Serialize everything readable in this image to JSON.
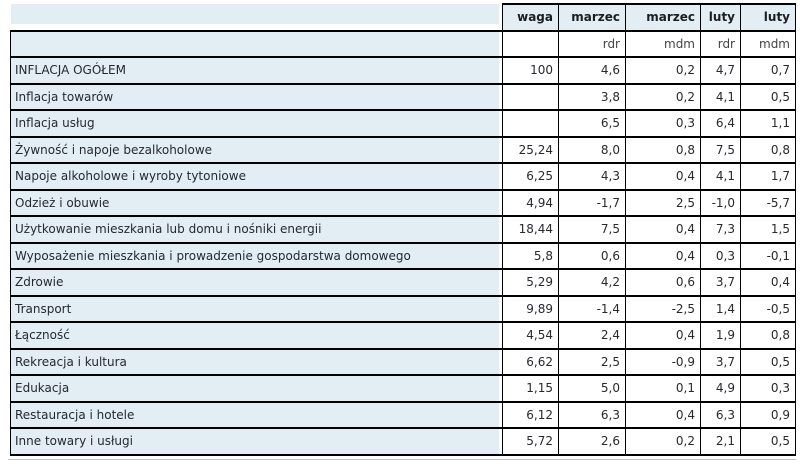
{
  "table": {
    "header_row_1": [
      "",
      "waga",
      "marzec",
      "marzec",
      "luty",
      "luty"
    ],
    "header_row_2": [
      "",
      "",
      "rdr",
      "mdm",
      "rdr",
      "mdm"
    ],
    "rows": [
      {
        "label": "INFLACJA OGÓŁEM",
        "values": [
          "100",
          "4,6",
          "0,2",
          "4,7",
          "0,7"
        ]
      },
      {
        "label": "Inflacja towarów",
        "values": [
          "",
          "3,8",
          "0,2",
          "4,1",
          "0,5"
        ]
      },
      {
        "label": "Inflacja usług",
        "values": [
          "",
          "6,5",
          "0,3",
          "6,4",
          "1,1"
        ]
      },
      {
        "label": "Żywność i napoje bezalkoholowe",
        "values": [
          "25,24",
          "8,0",
          "0,8",
          "7,5",
          "0,8"
        ]
      },
      {
        "label": "Napoje alkoholowe i wyroby tytoniowe",
        "values": [
          "6,25",
          "4,3",
          "0,4",
          "4,1",
          "1,7"
        ]
      },
      {
        "label": "Odzież i obuwie",
        "values": [
          "4,94",
          "-1,7",
          "2,5",
          "-1,0",
          "-5,7"
        ]
      },
      {
        "label": "Użytkowanie mieszkania lub domu i nośniki energii",
        "values": [
          "18,44",
          "7,5",
          "0,4",
          "7,3",
          "1,5"
        ]
      },
      {
        "label": "Wyposażenie mieszkania i prowadzenie gospodarstwa domowego",
        "values": [
          "5,8",
          "0,6",
          "0,4",
          "0,3",
          "-0,1"
        ]
      },
      {
        "label": "Zdrowie",
        "values": [
          "5,29",
          "4,2",
          "0,6",
          "3,7",
          "0,4"
        ]
      },
      {
        "label": "Transport",
        "values": [
          "9,89",
          "-1,4",
          "-2,5",
          "1,4",
          "-0,5"
        ]
      },
      {
        "label": "Łączność",
        "values": [
          "4,54",
          "2,4",
          "0,4",
          "1,9",
          "0,8"
        ]
      },
      {
        "label": "Rekreacja i kultura",
        "values": [
          "6,62",
          "2,5",
          "-0,9",
          "3,7",
          "0,5"
        ]
      },
      {
        "label": "Edukacja",
        "values": [
          "1,15",
          "5,0",
          "0,1",
          "4,9",
          "0,3"
        ]
      },
      {
        "label": "Restauracja i hotele",
        "values": [
          "6,12",
          "6,3",
          "0,4",
          "6,3",
          "0,9"
        ]
      },
      {
        "label": "Inne towary i usługi",
        "values": [
          "5,72",
          "2,6",
          "0,2",
          "2,1",
          "0,5"
        ]
      }
    ]
  },
  "colors": {
    "cell_blue": "#e2edf4",
    "border_black": "#000000",
    "text_dark": "#26292e",
    "header_text": "#1c1e21",
    "subheader_text": "#444444",
    "bottom_line_gray": "#c2c2c2"
  },
  "chart_data": {
    "type": "table",
    "title": "",
    "columns": [
      "waga",
      "marzec rdr",
      "marzec mdm",
      "luty rdr",
      "luty mdm"
    ],
    "rows": [
      {
        "category": "INFLACJA OGÓŁEM",
        "values": [
          100,
          4.6,
          0.2,
          4.7,
          0.7
        ]
      },
      {
        "category": "Inflacja towarów",
        "values": [
          null,
          3.8,
          0.2,
          4.1,
          0.5
        ]
      },
      {
        "category": "Inflacja usług",
        "values": [
          null,
          6.5,
          0.3,
          6.4,
          1.1
        ]
      },
      {
        "category": "Żywność i napoje bezalkoholowe",
        "values": [
          25.24,
          8.0,
          0.8,
          7.5,
          0.8
        ]
      },
      {
        "category": "Napoje alkoholowe i wyroby tytoniowe",
        "values": [
          6.25,
          4.3,
          0.4,
          4.1,
          1.7
        ]
      },
      {
        "category": "Odzież i obuwie",
        "values": [
          4.94,
          -1.7,
          2.5,
          -1.0,
          -5.7
        ]
      },
      {
        "category": "Użytkowanie mieszkania lub domu i nośniki energii",
        "values": [
          18.44,
          7.5,
          0.4,
          7.3,
          1.5
        ]
      },
      {
        "category": "Wyposażenie mieszkania i prowadzenie gospodarstwa domowego",
        "values": [
          5.8,
          0.6,
          0.4,
          0.3,
          -0.1
        ]
      },
      {
        "category": "Zdrowie",
        "values": [
          5.29,
          4.2,
          0.6,
          3.7,
          0.4
        ]
      },
      {
        "category": "Transport",
        "values": [
          9.89,
          -1.4,
          -2.5,
          1.4,
          -0.5
        ]
      },
      {
        "category": "Łączność",
        "values": [
          4.54,
          2.4,
          0.4,
          1.9,
          0.8
        ]
      },
      {
        "category": "Rekreacja i kultura",
        "values": [
          6.62,
          2.5,
          -0.9,
          3.7,
          0.5
        ]
      },
      {
        "category": "Edukacja",
        "values": [
          1.15,
          5.0,
          0.1,
          4.9,
          0.3
        ]
      },
      {
        "category": "Restauracja i hotele",
        "values": [
          6.12,
          6.3,
          0.4,
          6.3,
          0.9
        ]
      },
      {
        "category": "Inne towary i usługi",
        "values": [
          5.72,
          2.6,
          0.2,
          2.1,
          0.5
        ]
      }
    ]
  }
}
